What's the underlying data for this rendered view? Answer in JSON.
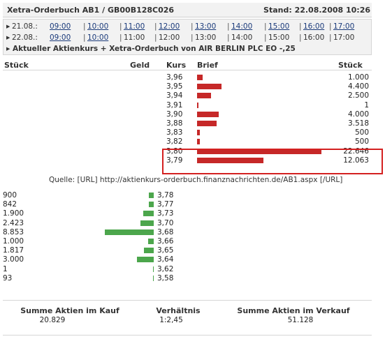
{
  "header": {
    "title": "Xetra-Orderbuch AB1 / GB00B128C026",
    "stand": "Stand: 22.08.2008 10:26"
  },
  "time_rows": [
    {
      "date": "21.08.:",
      "slots": [
        {
          "label": "09:00",
          "link": true
        },
        {
          "label": "10:00",
          "link": true
        },
        {
          "label": "11:00",
          "link": true
        },
        {
          "label": "12:00",
          "link": true
        },
        {
          "label": "13:00",
          "link": true
        },
        {
          "label": "14:00",
          "link": true
        },
        {
          "label": "15:00",
          "link": true
        },
        {
          "label": "16:00",
          "link": true
        },
        {
          "label": "17:00",
          "link": true
        }
      ]
    },
    {
      "date": "22.08.:",
      "slots": [
        {
          "label": "09:00",
          "link": true
        },
        {
          "label": "10:00",
          "link": true
        },
        {
          "label": "11:00",
          "link": false
        },
        {
          "label": "12:00",
          "link": false
        },
        {
          "label": "13:00",
          "link": false
        },
        {
          "label": "14:00",
          "link": false
        },
        {
          "label": "15:00",
          "link": false
        },
        {
          "label": "16:00",
          "link": false
        },
        {
          "label": "17:00",
          "link": false
        }
      ]
    }
  ],
  "info_line": "Aktueller Aktienkurs + Xetra-Orderbuch von AIR BERLIN PLC EO -,25",
  "columns": {
    "stueck_left": "Stück",
    "geld": "Geld",
    "kurs": "Kurs",
    "brief": "Brief",
    "stueck_right": "Stück"
  },
  "sell_orders": [
    {
      "kurs": "3,96",
      "qty": "1.000",
      "value": 1000
    },
    {
      "kurs": "3,95",
      "qty": "4.400",
      "value": 4400
    },
    {
      "kurs": "3,94",
      "qty": "2.500",
      "value": 2500
    },
    {
      "kurs": "3,91",
      "qty": "1",
      "value": 1
    },
    {
      "kurs": "3,90",
      "qty": "4.000",
      "value": 4000
    },
    {
      "kurs": "3,88",
      "qty": "3.518",
      "value": 3518
    },
    {
      "kurs": "3,83",
      "qty": "500",
      "value": 500
    },
    {
      "kurs": "3,82",
      "qty": "500",
      "value": 500
    },
    {
      "kurs": "3,80",
      "qty": "22.646",
      "value": 22646
    },
    {
      "kurs": "3,79",
      "qty": "12.063",
      "value": 12063
    }
  ],
  "quelle": "Quelle: [URL] http://aktienkurs-orderbuch.finanznachrichten.de/AB1.aspx [/URL]",
  "buy_orders": [
    {
      "kurs": "3,78",
      "qty": "900",
      "value": 900
    },
    {
      "kurs": "3,77",
      "qty": "842",
      "value": 842
    },
    {
      "kurs": "3,73",
      "qty": "1.900",
      "value": 1900
    },
    {
      "kurs": "3,70",
      "qty": "2.423",
      "value": 2423
    },
    {
      "kurs": "3,68",
      "qty": "8.853",
      "value": 8853
    },
    {
      "kurs": "3,66",
      "qty": "1.000",
      "value": 1000
    },
    {
      "kurs": "3,65",
      "qty": "1.817",
      "value": 1817
    },
    {
      "kurs": "3,64",
      "qty": "3.000",
      "value": 3000
    },
    {
      "kurs": "3,62",
      "qty": "1",
      "value": 1
    },
    {
      "kurs": "3,58",
      "qty": "93",
      "value": 93
    }
  ],
  "footer": {
    "kauf_title": "Summe Aktien im Kauf",
    "kauf_value": "20.829",
    "verh_title": "Verhältnis",
    "verh_value": "1:2,45",
    "verkauf_title": "Summe Aktien im Verkauf",
    "verkauf_value": "51.128"
  },
  "colors": {
    "sell_bar": "#c62828",
    "buy_bar": "#4ca64c",
    "highlight": "#d42020"
  }
}
